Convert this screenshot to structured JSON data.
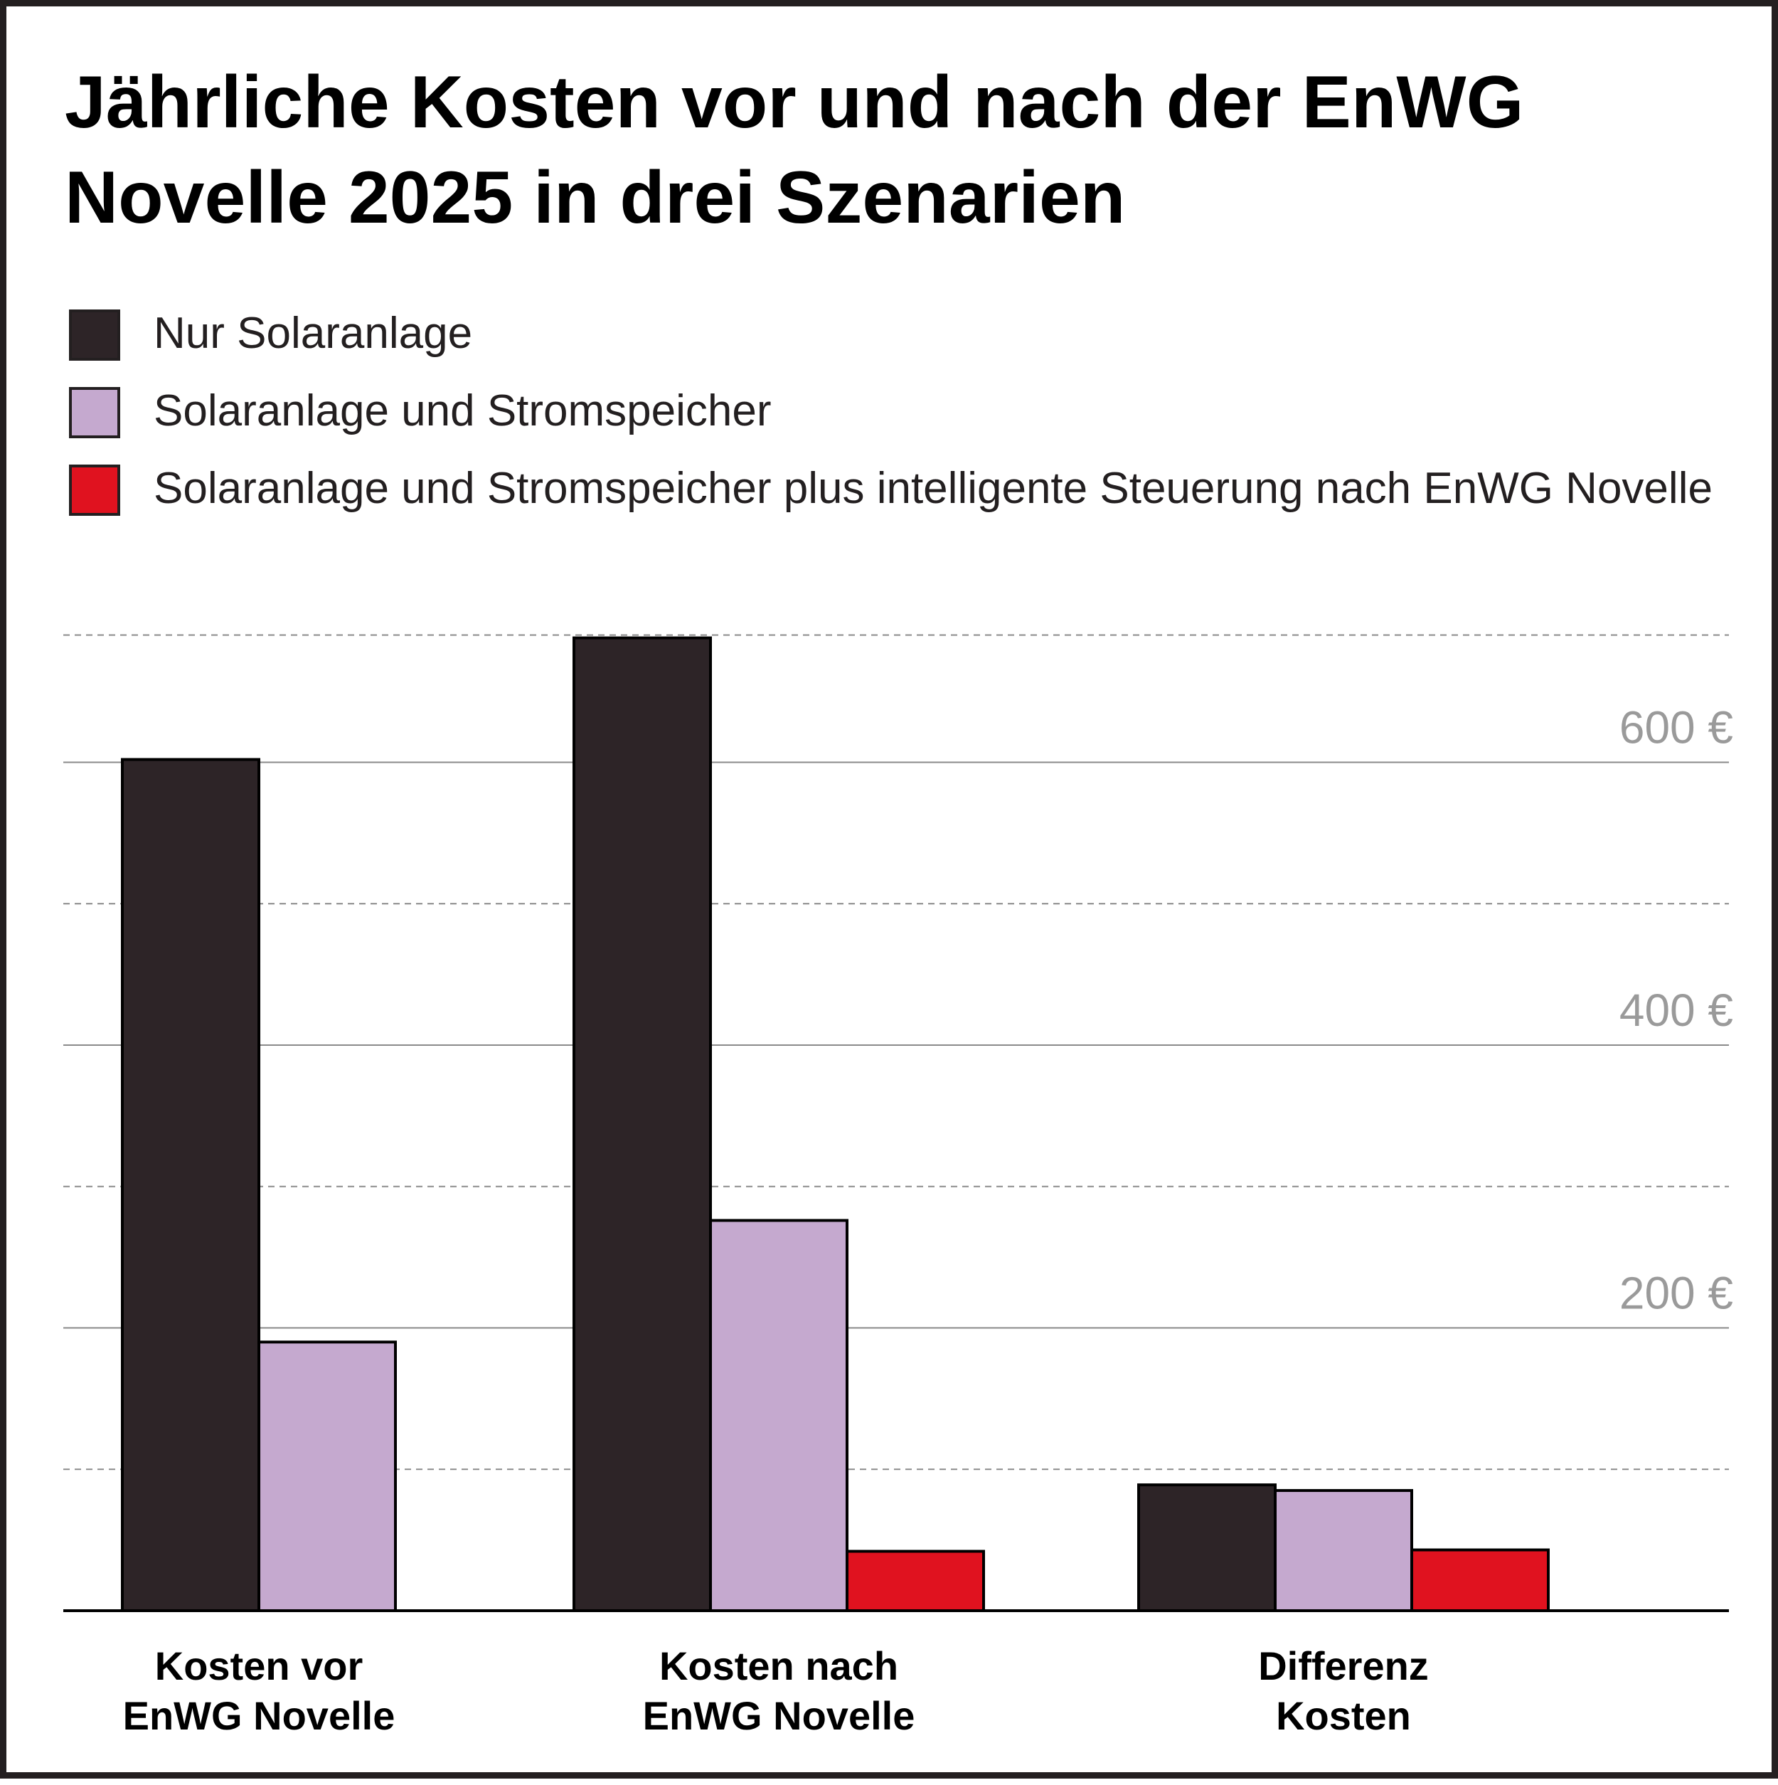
{
  "chart_data": {
    "type": "bar",
    "title_lines": [
      "Jährliche Kosten vor und nach der EnWG",
      "Novelle 2025 in drei Szenarien"
    ],
    "categories": [
      [
        "Kosten vor",
        "EnWG Novelle"
      ],
      [
        "Kosten nach",
        "EnWG Novelle"
      ],
      [
        "Differenz",
        "Kosten"
      ]
    ],
    "series": [
      {
        "name": "Nur Solaranlage",
        "color": "#2d2427",
        "values": [
          602,
          688,
          89
        ]
      },
      {
        "name": "Solaranlage und Stromspeicher",
        "color": "#c5a9cf",
        "values": [
          190,
          276,
          85
        ]
      },
      {
        "name": "Solaranlage und Stromspeicher plus intelligente Steuerung nach EnWG Novelle",
        "color": "#e0121f",
        "values": [
          0,
          42,
          43
        ]
      }
    ],
    "y_ticks": [
      {
        "value": 200,
        "label": "200 €"
      },
      {
        "value": 400,
        "label": "400 €"
      },
      {
        "value": 600,
        "label": "600 €"
      }
    ],
    "ylim": [
      0,
      690
    ],
    "minor_gridlines": [
      100,
      300,
      500,
      690
    ],
    "legend_position": "top-left",
    "grid": true
  }
}
